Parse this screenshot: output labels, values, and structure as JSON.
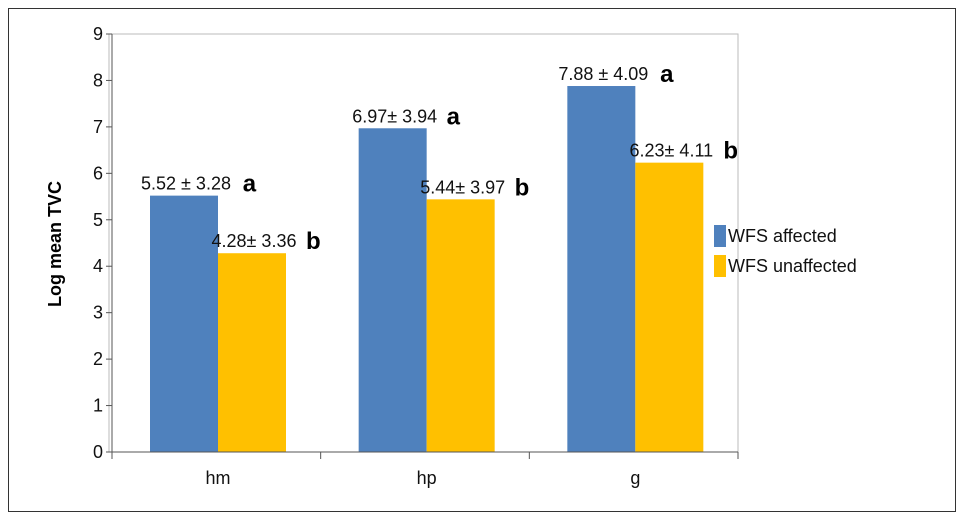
{
  "chart_data": {
    "type": "bar",
    "title": "",
    "xlabel": "",
    "ylabel": "Log mean TVC",
    "ylim": [
      0,
      9
    ],
    "yticks": [
      0,
      1,
      2,
      3,
      4,
      5,
      6,
      7,
      8,
      9
    ],
    "grid": false,
    "legend_position": "right",
    "categories": [
      "hm",
      "hp",
      "g"
    ],
    "series": [
      {
        "name": "WFS affected",
        "color": "#4f81bd",
        "values": [
          5.52,
          6.97,
          7.88
        ],
        "labels": [
          "5.52 ± 3.28",
          "6.97± 3.94",
          "7.88 ± 4.09"
        ],
        "letters": [
          "a",
          "a",
          "a"
        ]
      },
      {
        "name": "WFS unaffected",
        "color": "#ffc000",
        "values": [
          4.28,
          5.44,
          6.23
        ],
        "labels": [
          "4.28± 3.36",
          "5.44± 3.97",
          "6.23± 4.11"
        ],
        "letters": [
          "b",
          "b",
          "b"
        ]
      }
    ]
  }
}
